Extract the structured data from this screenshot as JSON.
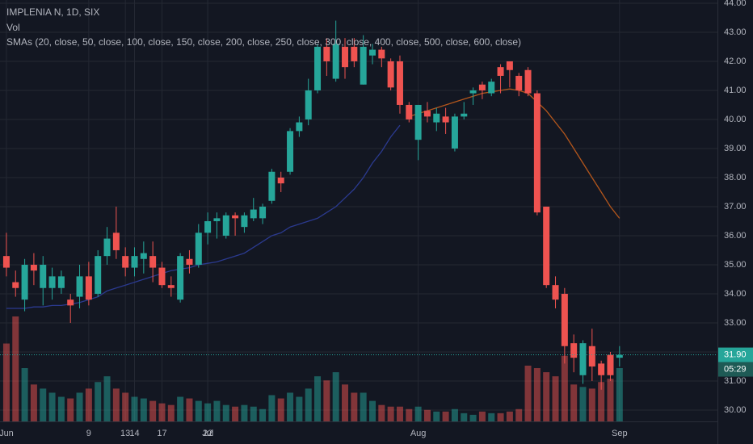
{
  "chart_data": {
    "type": "candlestick",
    "title": "IMPLENIA N, 1D, SIX",
    "volume_label": "Vol",
    "indicator_label": "SMAs (20, close, 50, close, 100, close, 150, close, 200, close, 250, close, 300, close, 400, close, 500, close, 600, close)",
    "up_color": "#26a69a",
    "down_color": "#ef5350",
    "x": [
      0,
      1,
      2,
      3,
      4,
      5,
      6,
      7,
      8,
      9,
      10,
      11,
      12,
      13,
      14,
      15,
      16,
      17,
      18,
      19,
      20,
      21,
      22,
      23,
      24,
      25,
      26,
      27,
      28,
      29,
      30,
      31,
      32,
      33,
      34,
      35,
      36,
      37,
      38,
      39,
      40,
      41,
      42,
      43,
      44,
      45,
      46,
      47,
      48,
      49,
      50,
      51,
      52,
      53,
      54,
      55,
      56,
      57,
      58,
      59,
      60,
      61,
      62,
      63,
      64,
      65,
      66,
      67
    ],
    "open": [
      35.3,
      34.4,
      33.8,
      35.0,
      34.2,
      34.2,
      34.2,
      33.8,
      33.9,
      34.6,
      34.0,
      35.3,
      36.1,
      35.3,
      34.9,
      35.2,
      35.3,
      34.9,
      34.3,
      33.8,
      35.2,
      35.0,
      36.1,
      36.5,
      36.0,
      36.7,
      36.3,
      36.6,
      36.6,
      37.2,
      38.0,
      38.2,
      39.6,
      40.0,
      41.0,
      42.5,
      41.4,
      42.5,
      42.5,
      41.2,
      42.2,
      42.4,
      42.0,
      42.0,
      40.5,
      39.3,
      40.3,
      39.9,
      40.1,
      39.0,
      40.1,
      40.9,
      41.2,
      40.9,
      41.8,
      42.0,
      41.5,
      41.7,
      40.9,
      37.0,
      34.3,
      34.0,
      32.3,
      31.2,
      32.2,
      31.6,
      31.9,
      31.8
    ],
    "high": [
      36.1,
      34.8,
      35.2,
      35.4,
      35.3,
      34.9,
      34.8,
      34.0,
      35.0,
      35.1,
      35.5,
      36.3,
      37.0,
      35.6,
      35.6,
      35.8,
      35.8,
      35.1,
      34.6,
      35.4,
      35.5,
      36.4,
      36.8,
      36.8,
      36.8,
      36.8,
      36.8,
      37.3,
      37.1,
      38.3,
      38.2,
      39.7,
      40.1,
      41.4,
      42.6,
      42.8,
      43.4,
      42.8,
      42.8,
      42.9,
      42.6,
      42.5,
      42.1,
      42.2,
      40.6,
      40.5,
      40.6,
      40.4,
      40.4,
      40.2,
      40.6,
      41.1,
      41.3,
      41.4,
      41.9,
      42.0,
      41.6,
      41.8,
      41.0,
      37.0,
      34.6,
      34.2,
      32.6,
      32.4,
      32.8,
      31.7,
      32.0,
      32.2
    ],
    "low": [
      34.6,
      33.9,
      33.4,
      34.3,
      33.6,
      33.8,
      34.0,
      33.0,
      33.5,
      33.6,
      33.9,
      35.0,
      35.2,
      34.6,
      34.6,
      34.7,
      34.4,
      34.2,
      33.9,
      33.7,
      34.7,
      34.9,
      35.7,
      35.9,
      35.9,
      36.0,
      36.1,
      36.5,
      36.4,
      37.1,
      37.5,
      38.1,
      39.4,
      39.8,
      40.9,
      41.5,
      41.3,
      41.4,
      41.8,
      41.2,
      41.9,
      41.8,
      41.0,
      40.2,
      39.9,
      38.6,
      39.9,
      39.6,
      39.5,
      38.9,
      40.0,
      40.5,
      40.7,
      40.8,
      40.9,
      41.1,
      40.8,
      40.8,
      36.7,
      34.2,
      33.5,
      31.6,
      31.3,
      30.9,
      31.0,
      30.7,
      31.0,
      31.5
    ],
    "close": [
      34.9,
      34.2,
      35.0,
      34.8,
      35.0,
      34.6,
      34.6,
      33.6,
      34.6,
      33.8,
      35.3,
      35.9,
      35.5,
      34.9,
      35.3,
      35.4,
      34.9,
      34.3,
      34.2,
      35.3,
      35.0,
      36.1,
      36.5,
      36.6,
      36.7,
      36.6,
      36.7,
      36.9,
      37.0,
      38.2,
      37.8,
      39.6,
      39.9,
      41.0,
      42.5,
      42.0,
      42.6,
      41.8,
      42.0,
      42.5,
      42.4,
      42.1,
      41.1,
      40.5,
      40.0,
      40.5,
      40.1,
      40.2,
      39.9,
      40.1,
      40.2,
      41.0,
      41.0,
      41.3,
      41.5,
      41.7,
      41.0,
      40.9,
      36.8,
      34.3,
      33.8,
      32.2,
      31.8,
      32.3,
      31.5,
      31.2,
      31.2,
      31.9
    ],
    "volume": [
      95000,
      128000,
      65000,
      45000,
      40000,
      35000,
      30000,
      28000,
      35000,
      40000,
      48000,
      55000,
      40000,
      35000,
      30000,
      28000,
      25000,
      22000,
      20000,
      30000,
      28000,
      25000,
      22000,
      25000,
      20000,
      18000,
      20000,
      18000,
      15000,
      32000,
      28000,
      35000,
      30000,
      40000,
      55000,
      50000,
      60000,
      45000,
      35000,
      35000,
      25000,
      20000,
      18000,
      18000,
      15000,
      18000,
      14000,
      12000,
      12000,
      15000,
      10000,
      8000,
      12000,
      10000,
      10000,
      12000,
      15000,
      68000,
      65000,
      60000,
      55000,
      80000,
      45000,
      42000,
      40000,
      48000,
      52000,
      65000
    ],
    "lines": [
      {
        "color": "#2b3a8f",
        "values": [
          33.5,
          33.5,
          33.5,
          33.55,
          33.55,
          33.6,
          33.6,
          33.65,
          33.7,
          33.8,
          33.9,
          34.1,
          34.2,
          34.3,
          34.4,
          34.5,
          34.6,
          34.7,
          34.8,
          34.85,
          34.9,
          35.0,
          35.05,
          35.1,
          35.2,
          35.3,
          35.4,
          35.6,
          35.8,
          36.0,
          36.1,
          36.3,
          36.4,
          36.5,
          36.6,
          36.8,
          37.0,
          37.3,
          37.6,
          38.0,
          38.5,
          38.9,
          39.4,
          39.8,
          null,
          null,
          null,
          null,
          null,
          null,
          null,
          null,
          null,
          null,
          null,
          null,
          null,
          null,
          null,
          null,
          null,
          null,
          null,
          null,
          null,
          null,
          null,
          null
        ]
      },
      {
        "color": "#b3561c",
        "values": [
          null,
          null,
          null,
          null,
          null,
          null,
          null,
          null,
          null,
          null,
          null,
          null,
          null,
          null,
          null,
          null,
          null,
          null,
          null,
          null,
          null,
          null,
          null,
          null,
          null,
          null,
          null,
          null,
          null,
          null,
          null,
          null,
          null,
          null,
          null,
          null,
          null,
          null,
          null,
          null,
          null,
          null,
          null,
          null,
          40.1,
          40.2,
          40.3,
          40.4,
          40.5,
          40.6,
          40.7,
          40.8,
          40.9,
          40.95,
          41.0,
          41.05,
          41.0,
          40.9,
          40.6,
          40.3,
          39.9,
          39.5,
          39.0,
          38.5,
          38.0,
          37.5,
          37.0,
          36.6
        ]
      }
    ],
    "xlim": [
      -0.7,
      77.7
    ],
    "xticks": [
      {
        "value": 0,
        "label": "Jun"
      },
      9,
      {
        "value": 22,
        "label": "Jul"
      },
      13,
      22,
      {
        "value": 45,
        "label": "Aug"
      },
      17,
      {
        "value": 67,
        "label": "Sep"
      },
      14
    ],
    "ylim": [
      29.61,
      44.11
    ],
    "yticks": [
      {
        "value": 30,
        "label": "30.00"
      },
      {
        "value": 31,
        "label": "31.00"
      },
      {
        "value": 32,
        "label": "32.00"
      },
      {
        "value": 33,
        "label": "33.00"
      },
      {
        "value": 34,
        "label": "34.00"
      },
      {
        "value": 35,
        "label": "35.00"
      },
      {
        "value": 36,
        "label": "36.00"
      },
      {
        "value": 37,
        "label": "37.00"
      },
      {
        "value": 38,
        "label": "38.00"
      },
      {
        "value": 39,
        "label": "39.00"
      },
      {
        "value": 40,
        "label": "40.00"
      },
      {
        "value": 41,
        "label": "41.00"
      },
      {
        "value": 42,
        "label": "42.00"
      },
      {
        "value": 43,
        "label": "43.00"
      },
      {
        "value": 44,
        "label": "44.00"
      }
    ],
    "last_price": {
      "value": 31.9,
      "label": "31.90"
    },
    "countdown": "05:29",
    "grid": true
  }
}
